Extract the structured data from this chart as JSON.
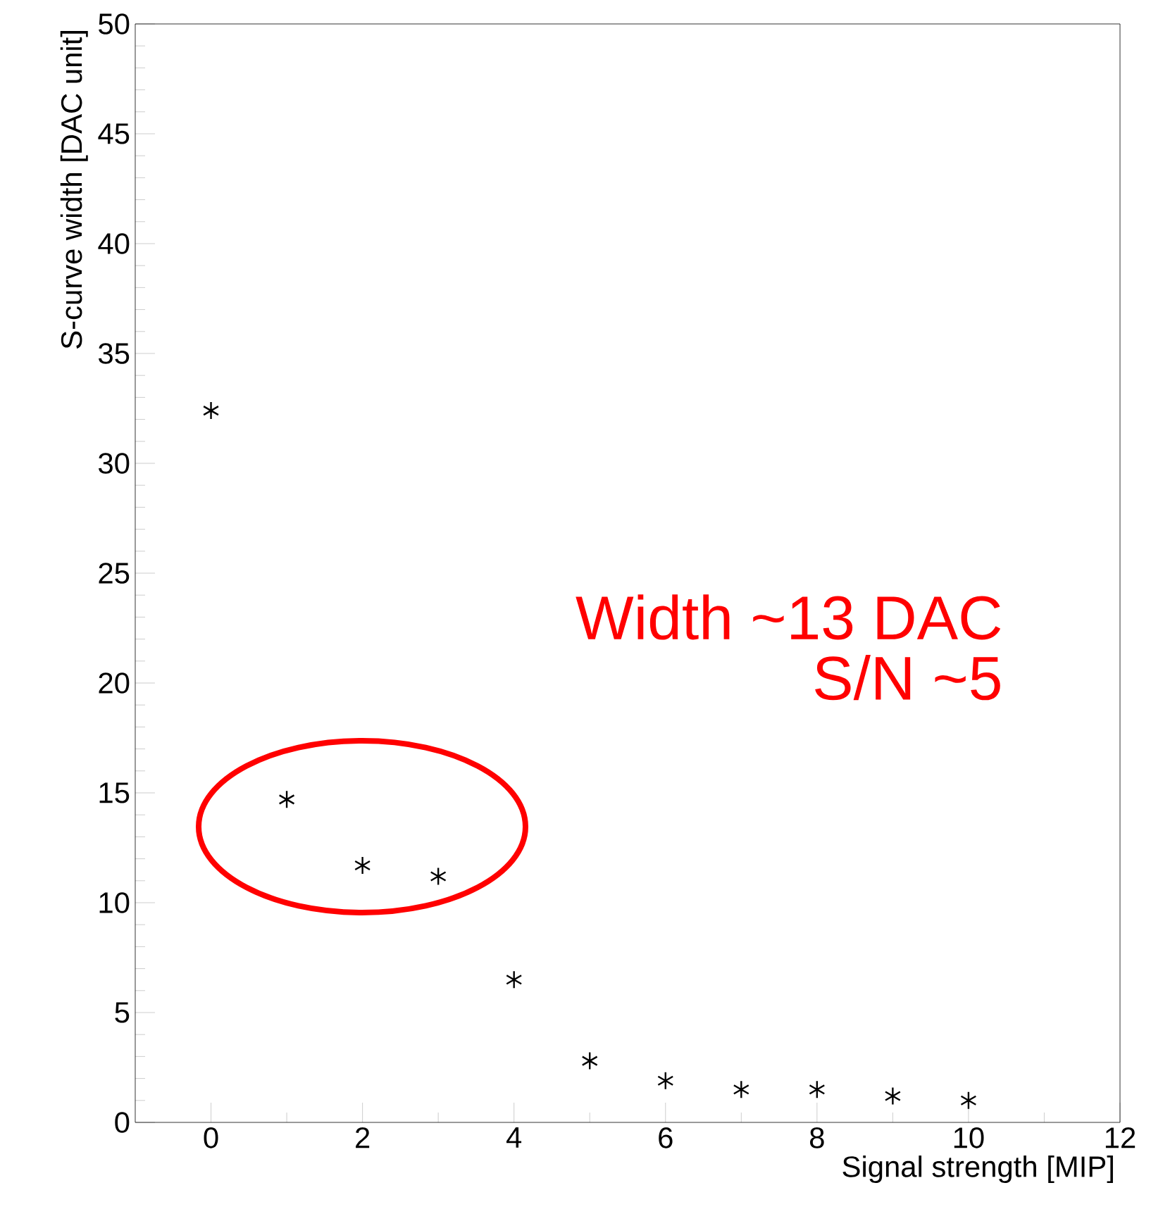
{
  "chart_data": {
    "type": "scatter",
    "xlabel": "Signal strength [MIP]",
    "ylabel": "S-curve width [DAC unit]",
    "x": [
      0,
      1,
      2,
      3,
      4,
      5,
      6,
      7,
      8,
      9,
      10
    ],
    "values": [
      32.4,
      14.7,
      11.7,
      11.2,
      6.5,
      2.8,
      1.9,
      1.5,
      1.5,
      1.2,
      1.0
    ],
    "color": "#000000",
    "marker": "cross",
    "xlim": [
      -1,
      12
    ],
    "xticks": [
      0,
      2,
      4,
      6,
      8,
      10,
      12
    ],
    "ylim": [
      0,
      50
    ],
    "yticks": [
      0,
      5,
      10,
      15,
      20,
      25,
      30,
      35,
      40,
      45,
      50
    ],
    "annotations": [
      "Width ~13 DAC",
      "S/N ~5"
    ],
    "grid": false
  }
}
